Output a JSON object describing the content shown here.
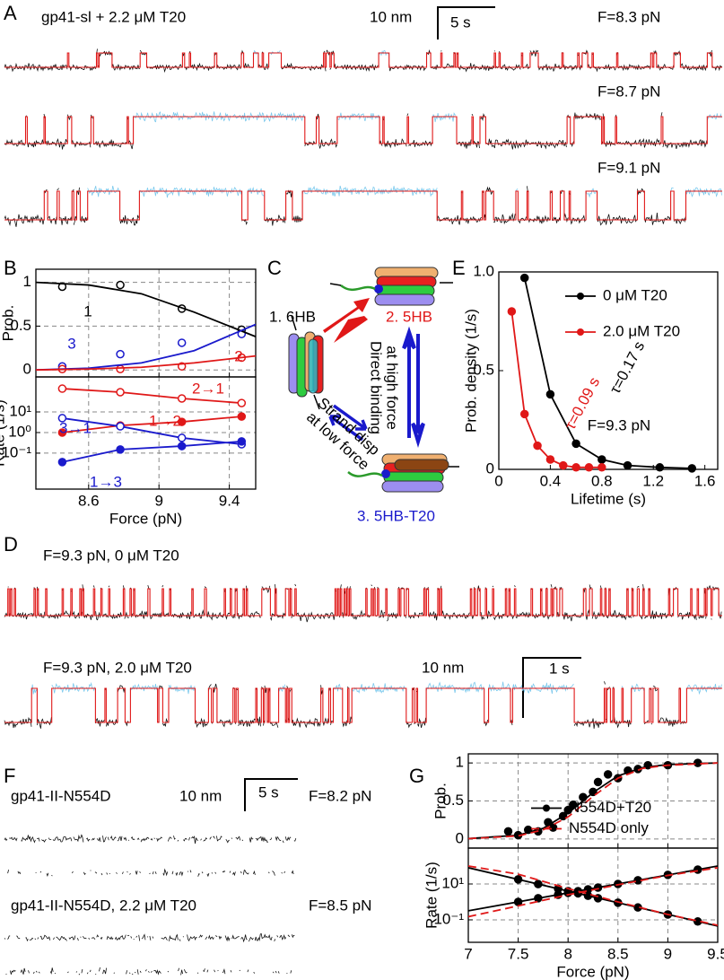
{
  "panel_labels": [
    "A",
    "B",
    "C",
    "D",
    "E",
    "F",
    "G"
  ],
  "panel_a": {
    "title": "gp41-sl + 2.2 μM T20",
    "scale_y": "10 nm",
    "scale_x": "5 s",
    "forces": [
      "F=8.3 pN",
      "F=8.7 pN",
      "F=9.1 pN"
    ]
  },
  "panel_c": {
    "states": [
      "1. 6HB",
      "2. 5HB",
      "3. 5HB-T20"
    ],
    "arrow_labels": [
      "Direct binding",
      "at high force",
      "Strand disp",
      "at low force"
    ]
  },
  "panel_d": {
    "traces": [
      "F=9.3 pN, 0 μM T20",
      "F=9.3 pN, 2.0 μM T20"
    ],
    "scale_y": "10 nm",
    "scale_x": "1 s"
  },
  "panel_f": {
    "traces": [
      "gp41-II-N554D",
      "gp41-II-N554D, 2.2 μM T20"
    ],
    "forces": [
      "F=8.2 pN",
      "F=8.5 pN"
    ],
    "scale_y": "10 nm",
    "scale_x": "5 s"
  },
  "chart_data": [
    {
      "type": "scatter",
      "ylabel": "Prob.",
      "xlim": [
        8.3,
        9.55
      ],
      "ylim": [
        -0.08,
        1.15
      ],
      "xticks": [
        8.6,
        9,
        9.4
      ],
      "yticks": [
        0,
        0.5,
        1
      ],
      "grid": true,
      "show_xtick_labels": false,
      "series": [
        {
          "name": "1",
          "color": "#000000",
          "marker": "open",
          "x": [
            8.45,
            8.78,
            9.13,
            9.47
          ],
          "values": [
            0.95,
            0.97,
            0.7,
            0.46
          ]
        },
        {
          "name": "3",
          "color": "#1a1acc",
          "marker": "open",
          "x": [
            8.45,
            8.78,
            9.13,
            9.47
          ],
          "values": [
            0.04,
            0.18,
            0.31,
            0.41
          ]
        },
        {
          "name": "2",
          "color": "#e01818",
          "marker": "open",
          "x": [
            8.45,
            8.78,
            9.13,
            9.47
          ],
          "values": [
            0.01,
            0.01,
            0.04,
            0.14
          ]
        },
        {
          "color": "#000000",
          "marker": "none",
          "line": "solid",
          "x": [
            8.3,
            8.6,
            8.9,
            9.2,
            9.55
          ],
          "values": [
            1.0,
            0.97,
            0.87,
            0.66,
            0.38
          ]
        },
        {
          "color": "#1a1acc",
          "marker": "none",
          "line": "solid",
          "x": [
            8.3,
            8.6,
            8.9,
            9.2,
            9.55
          ],
          "values": [
            0.0,
            0.02,
            0.08,
            0.22,
            0.52
          ]
        },
        {
          "color": "#e01818",
          "marker": "none",
          "line": "solid",
          "x": [
            8.3,
            8.6,
            8.9,
            9.2,
            9.55
          ],
          "values": [
            0.0,
            0.01,
            0.03,
            0.08,
            0.16
          ]
        }
      ]
    },
    {
      "type": "scatter",
      "xlabel": "Force (pN)",
      "ylabel": "Rate (1/s)",
      "log_y": true,
      "xlim": [
        8.3,
        9.55
      ],
      "ylim": [
        0.0018,
        500
      ],
      "xticks": [
        8.6,
        9,
        9.4
      ],
      "yticks": [
        {
          "value": 0.1,
          "label": "10⁻¹"
        },
        {
          "value": 1,
          "label": "10⁰"
        },
        {
          "value": 10,
          "label": "10¹"
        }
      ],
      "grid": true,
      "series": [
        {
          "name": "2→1",
          "color": "#e01818",
          "marker": "open",
          "line": "solid",
          "x": [
            8.45,
            8.78,
            9.13,
            9.47
          ],
          "values": [
            135,
            91,
            45,
            27
          ]
        },
        {
          "name": "1→2",
          "color": "#e01818",
          "marker": "filled",
          "line": "solid",
          "x": [
            8.45,
            8.78,
            9.13,
            9.47
          ],
          "values": [
            1.0,
            2.2,
            3.3,
            6.0
          ]
        },
        {
          "name": "3→1",
          "color": "#1a1acc",
          "marker": "open",
          "line": "solid",
          "x": [
            8.45,
            8.78,
            9.13,
            9.47
          ],
          "values": [
            5.0,
            2.0,
            0.55,
            0.27
          ]
        },
        {
          "name": "1→3",
          "color": "#1a1acc",
          "marker": "filled",
          "line": "solid",
          "x": [
            8.45,
            8.78,
            9.13,
            9.47
          ],
          "values": [
            0.037,
            0.15,
            0.22,
            0.37
          ]
        }
      ]
    },
    {
      "type": "line",
      "xlabel": "Lifetime (s)",
      "ylabel": "Prob. density (1/s)",
      "xlim": [
        0,
        1.7
      ],
      "ylim": [
        0,
        1.0
      ],
      "xticks": [
        0,
        0.4,
        0.8,
        1.2,
        1.6
      ],
      "yticks": [
        0,
        0.5,
        {
          "value": 1,
          "label": "1.0"
        }
      ],
      "legend": "upper right",
      "annotations": [
        "τ=0.17 s",
        "τ=0.09 s",
        "F=9.3 pN"
      ],
      "series": [
        {
          "name": "0 μM T20",
          "color": "#000000",
          "marker": "filled",
          "line": "solid",
          "x": [
            0.2,
            0.4,
            0.6,
            0.8,
            1.0,
            1.25,
            1.5
          ],
          "values": [
            0.97,
            0.38,
            0.13,
            0.05,
            0.02,
            0.01,
            0.005
          ]
        },
        {
          "name": "2.0 μM T20",
          "color": "#e01818",
          "marker": "filled",
          "line": "solid",
          "x": [
            0.1,
            0.2,
            0.3,
            0.4,
            0.5,
            0.6,
            0.7,
            0.8
          ],
          "values": [
            0.8,
            0.28,
            0.12,
            0.05,
            0.02,
            0.01,
            0.01,
            0.01
          ]
        }
      ]
    },
    {
      "type": "line",
      "ylabel": "Prob.",
      "xlim": [
        7,
        9.5
      ],
      "ylim": [
        -0.12,
        1.12
      ],
      "xticks": [
        7,
        7.5,
        8,
        8.5,
        9,
        9.5
      ],
      "yticks": [
        0,
        0.5,
        1
      ],
      "grid": true,
      "show_xtick_labels": false,
      "legend": "center right",
      "series": [
        {
          "color": "#000000",
          "marker": "filled",
          "x": [
            7.4,
            7.5,
            7.6,
            7.7,
            7.8,
            7.85,
            7.95,
            8.0,
            8.05,
            8.15,
            8.25,
            8.3,
            8.4,
            8.5,
            8.6,
            8.7,
            8.8,
            9.0,
            9.3
          ],
          "values": [
            0.1,
            0.05,
            0.12,
            0.1,
            0.22,
            0.15,
            0.3,
            0.38,
            0.45,
            0.55,
            0.62,
            0.75,
            0.85,
            0.8,
            0.9,
            0.92,
            0.97,
            0.97,
            1.0
          ]
        },
        {
          "name": "N554D+T20",
          "color": "#000000",
          "marker": "none",
          "legend_marker": "filled",
          "line": "solid",
          "x": [
            7,
            7.5,
            7.75,
            8,
            8.25,
            8.5,
            8.75,
            9,
            9.5
          ],
          "values": [
            0.005,
            0.05,
            0.14,
            0.34,
            0.61,
            0.83,
            0.94,
            0.98,
            1.0
          ]
        },
        {
          "name": "N554D only",
          "color": "#e01818",
          "marker": "none",
          "line": "dashed",
          "x": [
            7,
            7.5,
            7.75,
            8,
            8.25,
            8.5,
            8.75,
            9,
            9.5
          ],
          "values": [
            0.004,
            0.04,
            0.12,
            0.29,
            0.56,
            0.8,
            0.93,
            0.97,
            1.0
          ]
        }
      ]
    },
    {
      "type": "line",
      "xlabel": "Force (pN)",
      "ylabel": "Rate (1/s)",
      "log_y": true,
      "xlim": [
        7,
        9.5
      ],
      "ylim": [
        0.0056,
        1000
      ],
      "xticks": [
        7,
        7.5,
        8,
        8.5,
        9,
        9.5
      ],
      "yticks": [
        {
          "value": 0.1,
          "label": "10⁻¹"
        },
        {
          "value": 10,
          "label": "10¹"
        }
      ],
      "grid": true,
      "series": [
        {
          "color": "#000000",
          "marker": "filled",
          "x": [
            7.5,
            7.7,
            7.9,
            8.0,
            8.1,
            8.2,
            8.3,
            8.5,
            8.7,
            9.0,
            9.3
          ],
          "values": [
            1.0,
            1.6,
            2.5,
            3.2,
            4.0,
            5.0,
            6.3,
            10,
            16,
            32,
            63
          ]
        },
        {
          "color": "#000000",
          "marker": "filled",
          "x": [
            7.5,
            7.7,
            7.9,
            8.0,
            8.1,
            8.2,
            8.3,
            8.5,
            8.7,
            9.0,
            9.3
          ],
          "values": [
            18,
            9.8,
            5.4,
            4.0,
            3.0,
            2.2,
            1.6,
            0.9,
            0.49,
            0.2,
            0.081
          ]
        },
        {
          "color": "#000000",
          "marker": "none",
          "line": "solid",
          "x": [
            7,
            9.5
          ],
          "values": [
            0.32,
            100
          ]
        },
        {
          "color": "#000000",
          "marker": "none",
          "line": "solid",
          "x": [
            7,
            9.5
          ],
          "values": [
            80,
            0.045
          ]
        },
        {
          "color": "#e01818",
          "marker": "none",
          "line": "dashed",
          "x": [
            7,
            7.5,
            8,
            8.5,
            9,
            9.5
          ],
          "values": [
            0.15,
            0.6,
            2.5,
            9,
            30,
            80
          ]
        },
        {
          "color": "#e01818",
          "marker": "none",
          "line": "dashed",
          "x": [
            7,
            7.5,
            8,
            8.5,
            9,
            9.5
          ],
          "values": [
            100,
            35,
            5.5,
            1.0,
            0.2,
            0.05
          ]
        }
      ]
    }
  ]
}
